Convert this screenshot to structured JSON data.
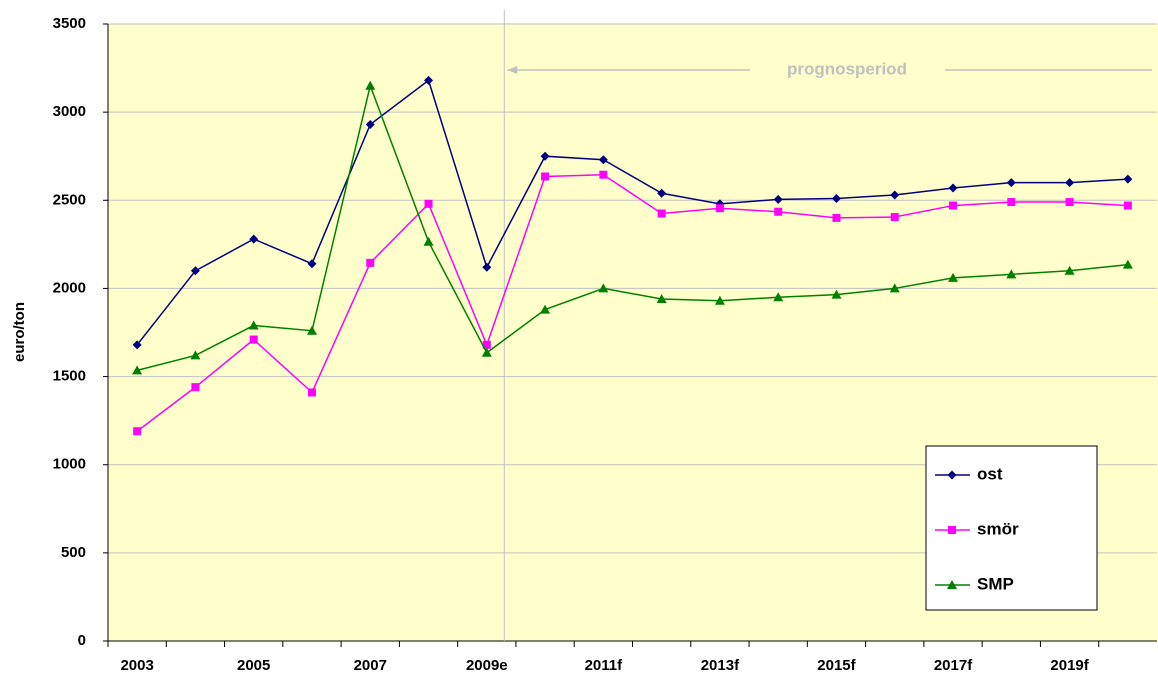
{
  "chart_data": {
    "type": "line",
    "y_label": "euro/ton",
    "annotation": "prognosperiod",
    "categories": [
      "2003",
      null,
      "2005",
      null,
      "2007",
      null,
      "2009e",
      null,
      "2011f",
      null,
      "2013f",
      null,
      "2015f",
      null,
      "2017f",
      null,
      "2019f",
      null
    ],
    "series": [
      {
        "name": "ost",
        "color": "#000080",
        "marker": "diamond",
        "values": [
          1680,
          2100,
          2280,
          2140,
          2930,
          3180,
          2120,
          2750,
          2730,
          2540,
          2480,
          2505,
          2510,
          2530,
          2570,
          2600,
          2600,
          2620
        ]
      },
      {
        "name": "smör",
        "color": "#ff00ff",
        "marker": "square",
        "values": [
          1190,
          1440,
          1710,
          1410,
          2145,
          2480,
          1680,
          2635,
          2645,
          2425,
          2455,
          2435,
          2400,
          2405,
          2470,
          2490,
          2490,
          2470
        ]
      },
      {
        "name": "SMP",
        "color": "#008000",
        "marker": "triangle",
        "values": [
          1535,
          1620,
          1790,
          1760,
          3150,
          2265,
          1635,
          1880,
          2000,
          1940,
          1930,
          1950,
          1965,
          2000,
          2060,
          2080,
          2100,
          2135
        ]
      }
    ],
    "ylim": [
      0,
      3500
    ],
    "yticks": [
      0,
      500,
      1000,
      1500,
      2000,
      2500,
      3000,
      3500
    ],
    "grid": true,
    "legend": "lower right"
  }
}
